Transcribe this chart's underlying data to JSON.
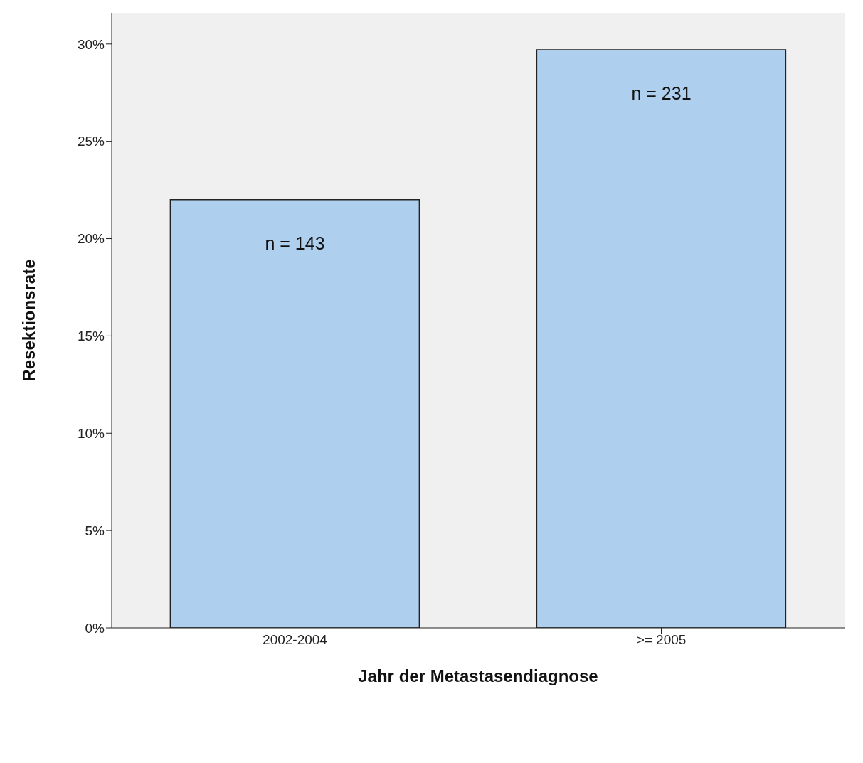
{
  "chart_data": {
    "type": "bar",
    "xlabel": "Jahr der Metastasendiagnose",
    "ylabel": "Resektionsrate",
    "categories": [
      "2002-2004",
      ">= 2005"
    ],
    "values": [
      22.0,
      29.7
    ],
    "color": "#aed0ee",
    "ylim": [
      0,
      31.6
    ],
    "yticks": [
      {
        "value": 0,
        "label": "0%"
      },
      {
        "value": 5,
        "label": "5%"
      },
      {
        "value": 10,
        "label": "10%"
      },
      {
        "value": 15,
        "label": "15%"
      },
      {
        "value": 20,
        "label": "20%"
      },
      {
        "value": 25,
        "label": "25%"
      },
      {
        "value": 30,
        "label": "30%"
      }
    ],
    "annotations": [
      {
        "text": "n = 143",
        "x": "2002-2004",
        "y": 22.0
      },
      {
        "text": "n = 231",
        "x": ">= 2005",
        "y": 29.7
      }
    ],
    "grid": false,
    "legend": false
  }
}
